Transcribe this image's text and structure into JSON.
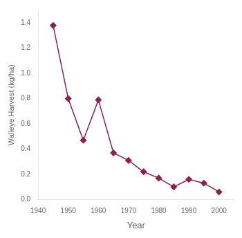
{
  "chart_data": {
    "type": "line",
    "x": [
      1945,
      1950,
      1955,
      1960,
      1965,
      1970,
      1975,
      1980,
      1985,
      1990,
      1995,
      2000
    ],
    "values": [
      1.38,
      0.8,
      0.47,
      0.79,
      0.37,
      0.31,
      0.22,
      0.17,
      0.1,
      0.16,
      0.13,
      0.06
    ],
    "color": "#8B2252",
    "marker": "diamond",
    "xlabel": "Year",
    "ylabel": "Walleye Harvest (kg/ha)",
    "xlim": [
      1940,
      2005
    ],
    "ylim": [
      0,
      1.5
    ],
    "xticks": [
      1940,
      1950,
      1960,
      1970,
      1980,
      1990,
      2000
    ],
    "yticks": [
      {
        "value": 0.0,
        "label": "0.0"
      },
      0.2,
      0.4,
      0.6,
      0.8,
      {
        "value": 1.0,
        "label": "1.0"
      },
      {
        "value": 1.2,
        "label": "1.2"
      },
      1.4
    ],
    "grid": false
  }
}
